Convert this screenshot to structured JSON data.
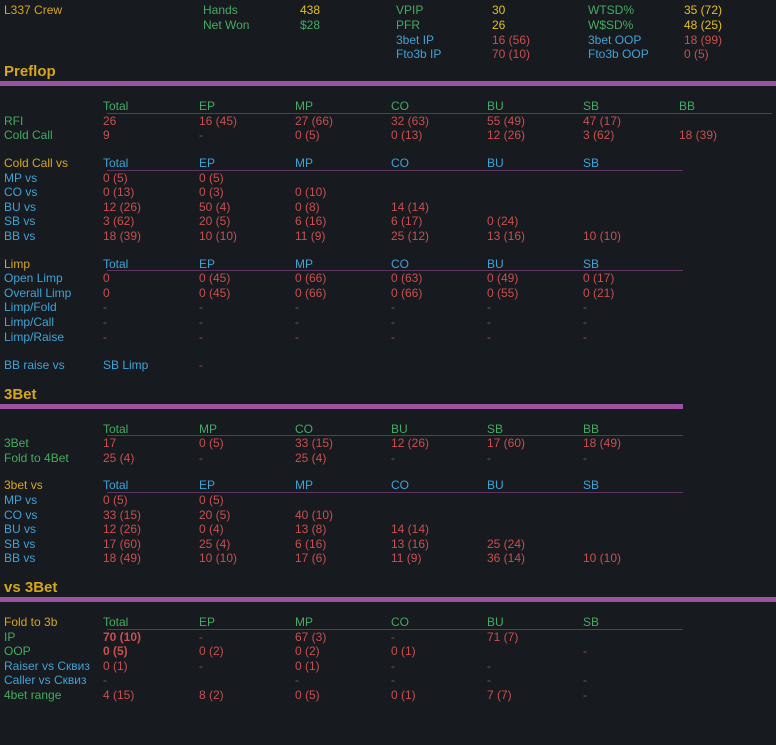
{
  "window_title": "Poker HUD stats popup",
  "colors": {
    "background": "#171a1e",
    "gold": "#d5a71b",
    "yellow": "#e2c018",
    "green": "#43ab63",
    "cyan": "#3fa3d8",
    "red": "#c94f50",
    "dash": "#9e4a4e",
    "purple": "#9c51a1",
    "underline": "#5d3762"
  },
  "header": {
    "rows": [
      {
        "c0": {
          "text": "L337 Crew",
          "color": "gold"
        },
        "cells": [
          {
            "text": "Hands",
            "color": "green"
          },
          {
            "text": "438",
            "color": "yellow"
          },
          {
            "text": "VPIP",
            "color": "green"
          },
          {
            "text": "30",
            "color": "yellow"
          },
          {
            "text": "WTSD%",
            "color": "green"
          },
          {
            "text": "35 (72)",
            "color": "yellow"
          }
        ]
      },
      {
        "cells": [
          {
            "text": "Net Won",
            "color": "green"
          },
          {
            "text": "$28",
            "color": "green"
          },
          {
            "text": "PFR",
            "color": "green"
          },
          {
            "text": "26",
            "color": "yellow"
          },
          {
            "text": "W$SD%",
            "color": "green"
          },
          {
            "text": "48 (25)",
            "color": "yellow"
          }
        ]
      },
      {
        "cells": [
          null,
          null,
          {
            "text": "3bet IP",
            "color": "cyan"
          },
          {
            "text": "16 (56)",
            "color": "red"
          },
          {
            "text": "3bet OOP",
            "color": "cyan"
          },
          {
            "text": "18 (99)",
            "color": "red"
          }
        ]
      },
      {
        "cells": [
          null,
          null,
          {
            "text": "Fto3b IP",
            "color": "cyan"
          },
          {
            "text": "70 (10)",
            "color": "red"
          },
          {
            "text": "Fto3b OOP",
            "color": "cyan"
          },
          {
            "text": "0 (5)",
            "color": "red"
          }
        ]
      }
    ]
  },
  "sections": [
    {
      "type": "title",
      "text": "Preflop",
      "line": "full"
    },
    {
      "type": "table",
      "name": "preflop-open-table",
      "corner": null,
      "columns": [
        "Total",
        "EP",
        "MP",
        "CO",
        "BU",
        "SB",
        "BB"
      ],
      "columns_color": "green",
      "underline": "full",
      "label_color": "green",
      "rows": [
        {
          "label": "RFI",
          "cells": [
            "26",
            "16 (45)",
            "27 (66)",
            "32 (63)",
            "55 (49)",
            "47 (17)",
            ""
          ]
        },
        {
          "label": "Cold Call",
          "cells": [
            "9",
            "-",
            "0 (5)",
            "0 (13)",
            "12 (26)",
            "3 (62)",
            "18 (39)"
          ]
        }
      ]
    },
    {
      "type": "table",
      "name": "cold-call-vs-table",
      "corner": {
        "text": "Cold Call vs",
        "color": "gold"
      },
      "columns": [
        "Total",
        "EP",
        "MP",
        "CO",
        "BU",
        "SB"
      ],
      "columns_color": "cyan",
      "underline": "short",
      "label_color": "cyan",
      "rows": [
        {
          "label": "MP vs",
          "cells": [
            "0 (5)",
            "0 (5)",
            "",
            "",
            "",
            ""
          ]
        },
        {
          "label": "CO vs",
          "cells": [
            "0 (13)",
            "0 (3)",
            "0 (10)",
            "",
            "",
            ""
          ]
        },
        {
          "label": "BU vs",
          "cells": [
            "12 (26)",
            "50 (4)",
            "0 (8)",
            "14 (14)",
            "",
            ""
          ]
        },
        {
          "label": "SB vs",
          "cells": [
            "3 (62)",
            "20 (5)",
            "6 (16)",
            "6 (17)",
            "0 (24)",
            ""
          ]
        },
        {
          "label": "BB vs",
          "cells": [
            "18 (39)",
            "10 (10)",
            "11 (9)",
            "25 (12)",
            "13 (16)",
            "10 (10)"
          ]
        }
      ]
    },
    {
      "type": "table",
      "name": "limp-table",
      "corner": {
        "text": "Limp",
        "color": "gold"
      },
      "columns": [
        "Total",
        "EP",
        "MP",
        "CO",
        "BU",
        "SB"
      ],
      "columns_color": "cyan",
      "underline": "short",
      "label_color": "cyan",
      "rows": [
        {
          "label": "Open Limp",
          "cells": [
            "0",
            "0 (45)",
            "0 (66)",
            "0 (63)",
            "0 (49)",
            "0 (17)"
          ]
        },
        {
          "label": "Overall Limp",
          "cells": [
            "0",
            "0 (45)",
            "0 (66)",
            "0 (66)",
            "0 (55)",
            "0 (21)"
          ]
        },
        {
          "label": "Limp/Fold",
          "cells": [
            "-",
            "-",
            "-",
            "-",
            "-",
            "-"
          ]
        },
        {
          "label": "Limp/Call",
          "cells": [
            "-",
            "-",
            "-",
            "-",
            "-",
            "-"
          ]
        },
        {
          "label": "Limp/Raise",
          "cells": [
            "-",
            "-",
            "-",
            "-",
            "-",
            "-"
          ]
        }
      ]
    },
    {
      "type": "table",
      "name": "bb-raise-vs-sb-limp",
      "corner": null,
      "columns": null,
      "label_color": "cyan",
      "rows": [
        {
          "label": "BB raise vs",
          "cells": [
            {
              "text": "SB Limp",
              "color": "cyan"
            },
            "-",
            "",
            "",
            "",
            ""
          ]
        }
      ]
    },
    {
      "type": "title",
      "text": "3Bet",
      "line": "short"
    },
    {
      "type": "table",
      "name": "threebet-table",
      "corner": null,
      "columns": [
        "Total",
        "MP",
        "CO",
        "BU",
        "SB",
        "BB"
      ],
      "columns_color": "green",
      "underline": "short",
      "label_color": "green",
      "rows": [
        {
          "label": "3Bet",
          "cells": [
            "17",
            "0 (5)",
            "33 (15)",
            "12 (26)",
            "17 (60)",
            "18 (49)"
          ]
        },
        {
          "label": "Fold to 4Bet",
          "cells": [
            "25 (4)",
            "-",
            "25 (4)",
            "-",
            "-",
            "-"
          ]
        }
      ]
    },
    {
      "type": "table",
      "name": "threebet-vs-table",
      "corner": {
        "text": "3bet vs",
        "color": "gold"
      },
      "columns": [
        "Total",
        "EP",
        "MP",
        "CO",
        "BU",
        "SB"
      ],
      "columns_color": "cyan",
      "underline": "short",
      "label_color": "cyan",
      "rows": [
        {
          "label": "MP vs",
          "cells": [
            "0 (5)",
            "0 (5)",
            "",
            "",
            "",
            ""
          ]
        },
        {
          "label": "CO vs",
          "cells": [
            "33 (15)",
            "20 (5)",
            "40 (10)",
            "",
            "",
            ""
          ]
        },
        {
          "label": "BU vs",
          "cells": [
            "12 (26)",
            "0 (4)",
            "13 (8)",
            "14 (14)",
            "",
            ""
          ]
        },
        {
          "label": "SB vs",
          "cells": [
            "17 (60)",
            "25 (4)",
            "6 (16)",
            "13 (16)",
            "25 (24)",
            ""
          ]
        },
        {
          "label": "BB vs",
          "cells": [
            "18 (49)",
            "10 (10)",
            "17 (6)",
            "11 (9)",
            "36 (14)",
            "10 (10)"
          ]
        }
      ]
    },
    {
      "type": "title",
      "text": "vs 3Bet",
      "line": "full"
    },
    {
      "type": "table",
      "name": "fold-to-3bet-table",
      "corner": {
        "text": "Fold to 3b",
        "color": "gold"
      },
      "columns": [
        "Total",
        "EP",
        "MP",
        "CO",
        "BU",
        "SB"
      ],
      "columns_color": "green",
      "underline": "short",
      "label_color": "green",
      "rows": [
        {
          "label": "IP",
          "label_color": "green",
          "cells": [
            {
              "text": "70 (10)",
              "color": "red",
              "bold": true
            },
            "-",
            "67 (3)",
            "-",
            "71 (7)",
            ""
          ]
        },
        {
          "label": "OOP",
          "label_color": "green",
          "cells": [
            {
              "text": "0 (5)",
              "color": "red",
              "bold": true
            },
            "0 (2)",
            "0 (2)",
            "0 (1)",
            "",
            "-"
          ]
        },
        {
          "label": "Raiser vs Сквиз",
          "label_color": "cyan",
          "cells": [
            "0 (1)",
            "-",
            "0 (1)",
            "-",
            "-",
            ""
          ]
        },
        {
          "label": "Caller vs Сквиз",
          "label_color": "cyan",
          "cells": [
            "-",
            "",
            "-",
            "-",
            "-",
            "-"
          ]
        },
        {
          "label": "4bet range",
          "label_color": "green",
          "cells": [
            "4 (15)",
            "8 (2)",
            "0 (5)",
            "0 (1)",
            "7 (7)",
            "-"
          ]
        }
      ]
    }
  ]
}
